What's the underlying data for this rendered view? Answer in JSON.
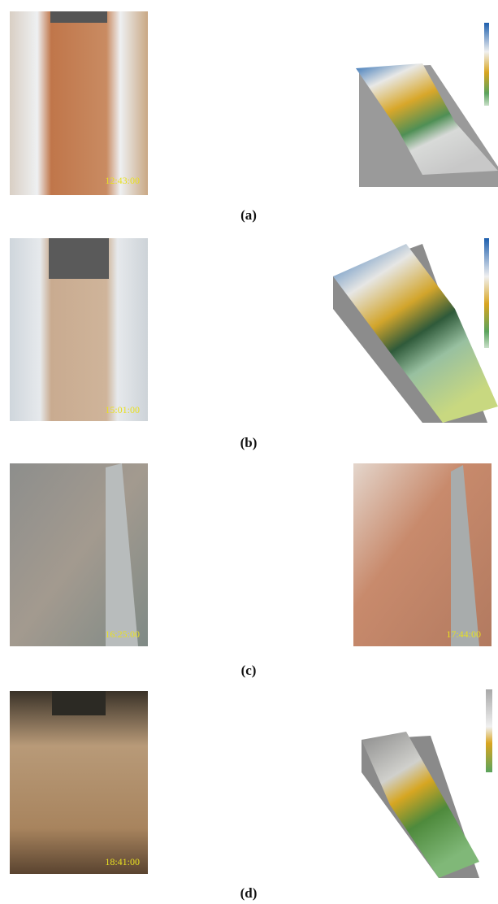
{
  "panels": [
    {
      "label": "(a)",
      "timestamps": [
        "12:43:00"
      ]
    },
    {
      "label": "(b)",
      "timestamps": [
        "15:01:00"
      ]
    },
    {
      "label": "(c)",
      "timestamps": [
        "16:25:00",
        "17:44:00"
      ]
    },
    {
      "label": "(d)",
      "timestamps": [
        "18:41:00"
      ]
    }
  ]
}
